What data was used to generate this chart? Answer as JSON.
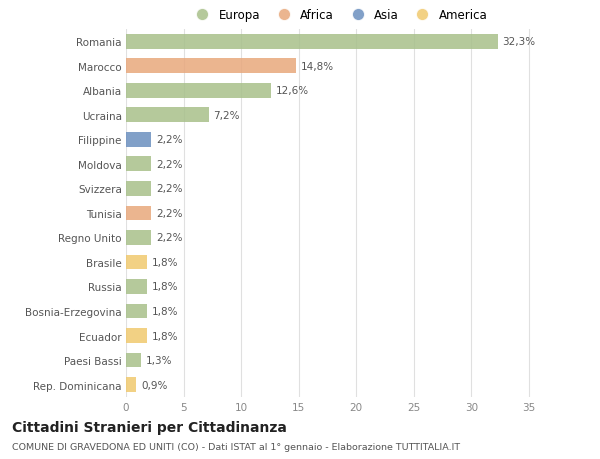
{
  "categories": [
    "Romania",
    "Marocco",
    "Albania",
    "Ucraina",
    "Filippine",
    "Moldova",
    "Svizzera",
    "Tunisia",
    "Regno Unito",
    "Brasile",
    "Russia",
    "Bosnia-Erzegovina",
    "Ecuador",
    "Paesi Bassi",
    "Rep. Dominicana"
  ],
  "values": [
    32.3,
    14.8,
    12.6,
    7.2,
    2.2,
    2.2,
    2.2,
    2.2,
    2.2,
    1.8,
    1.8,
    1.8,
    1.8,
    1.3,
    0.9
  ],
  "bar_colors": [
    "#a8c08a",
    "#e8a87c",
    "#a8c08a",
    "#a8c08a",
    "#6b8fbf",
    "#a8c08a",
    "#a8c08a",
    "#e8a87c",
    "#a8c08a",
    "#f0c96e",
    "#a8c08a",
    "#a8c08a",
    "#f0c96e",
    "#a8c08a",
    "#f0c96e"
  ],
  "labels": [
    "32,3%",
    "14,8%",
    "12,6%",
    "7,2%",
    "2,2%",
    "2,2%",
    "2,2%",
    "2,2%",
    "2,2%",
    "1,8%",
    "1,8%",
    "1,8%",
    "1,8%",
    "1,3%",
    "0,9%"
  ],
  "legend": [
    {
      "label": "Europa",
      "color": "#a8c08a"
    },
    {
      "label": "Africa",
      "color": "#e8a87c"
    },
    {
      "label": "Asia",
      "color": "#6b8fbf"
    },
    {
      "label": "America",
      "color": "#f0c96e"
    }
  ],
  "title": "Cittadini Stranieri per Cittadinanza",
  "subtitle": "COMUNE DI GRAVEDONA ED UNITI (CO) - Dati ISTAT al 1° gennaio - Elaborazione TUTTITALIA.IT",
  "xlim": [
    0,
    37
  ],
  "xticks": [
    0,
    5,
    10,
    15,
    20,
    25,
    30,
    35
  ],
  "background_color": "#ffffff",
  "grid_color": "#e0e0e0",
  "bar_height": 0.6,
  "label_fontsize": 7.5,
  "tick_fontsize": 7.5,
  "ytick_fontsize": 7.5,
  "title_fontsize": 10,
  "subtitle_fontsize": 6.8
}
